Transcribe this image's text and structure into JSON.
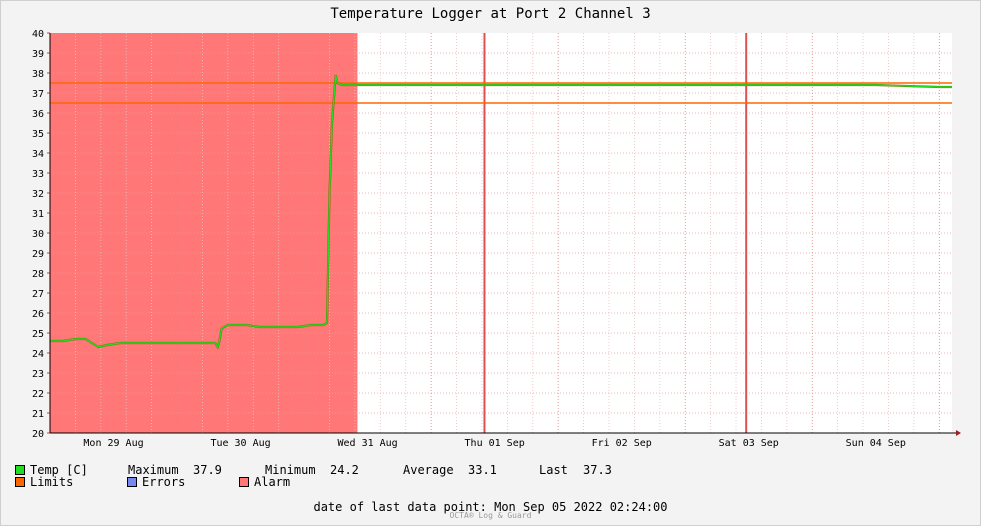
{
  "chart_data": {
    "type": "line",
    "title": "Temperature Logger at Port 2 Channel 3",
    "ylim": [
      20,
      40
    ],
    "y_ticks": [
      20,
      21,
      22,
      23,
      24,
      25,
      26,
      27,
      28,
      29,
      30,
      31,
      32,
      33,
      34,
      35,
      36,
      37,
      38,
      39,
      40
    ],
    "xlim": [
      0,
      7.1
    ],
    "x_tick_labels": [
      "Mon 29 Aug",
      "Tue 30 Aug",
      "Wed 31 Aug",
      "Thu 01 Sep",
      "Fri 02 Sep",
      "Sat 03 Sep",
      "Sun 04 Sep"
    ],
    "x_tick_positions": [
      0.5,
      1.5,
      2.5,
      3.5,
      4.5,
      5.5,
      6.5
    ],
    "grid": true,
    "series": [
      {
        "name": "Temp [C]",
        "color": "#22dd22",
        "x": [
          0,
          0.1,
          0.2,
          0.28,
          0.33,
          0.38,
          0.45,
          0.55,
          0.7,
          0.85,
          1.0,
          1.15,
          1.25,
          1.3,
          1.32,
          1.33,
          1.35,
          1.37,
          1.4,
          1.45,
          1.55,
          1.65,
          1.75,
          1.85,
          1.95,
          2.05,
          2.1,
          2.15,
          2.18,
          2.2,
          2.22,
          2.24,
          2.25,
          2.26,
          2.3,
          2.4,
          2.6,
          3.0,
          3.5,
          4.0,
          4.5,
          5.0,
          5.5,
          6.0,
          6.5,
          7.0,
          7.1
        ],
        "y": [
          24.6,
          24.6,
          24.7,
          24.7,
          24.5,
          24.3,
          24.4,
          24.5,
          24.5,
          24.5,
          24.5,
          24.5,
          24.5,
          24.5,
          24.3,
          24.5,
          25.2,
          25.3,
          25.4,
          25.4,
          25.4,
          25.3,
          25.3,
          25.3,
          25.3,
          25.4,
          25.4,
          25.4,
          25.5,
          32.0,
          35.5,
          37.2,
          37.9,
          37.5,
          37.4,
          37.4,
          37.4,
          37.4,
          37.4,
          37.4,
          37.4,
          37.4,
          37.4,
          37.4,
          37.4,
          37.3,
          37.3
        ]
      }
    ],
    "limits": {
      "name": "Limits",
      "upper": 37.5,
      "lower": 36.5,
      "color": "#ff6600"
    },
    "alarm": {
      "name": "Alarm",
      "x_start": 0,
      "x_end": 2.42,
      "color": "#ff7777"
    },
    "markers": {
      "x": [
        3.42,
        5.48
      ],
      "color": "#e05050"
    },
    "errors": {
      "name": "Errors",
      "color": "#7788ee"
    },
    "stats": {
      "max_label": "Maximum",
      "max": "37.9",
      "min_label": "Minimum",
      "min": "24.2",
      "avg_label": "Average",
      "avg": "33.1",
      "last_label": "Last",
      "last": "37.3"
    },
    "footer": "date of last data point:  Mon Sep 05 2022 02:24:00",
    "watermark": "OCTA® Log & Guard"
  }
}
